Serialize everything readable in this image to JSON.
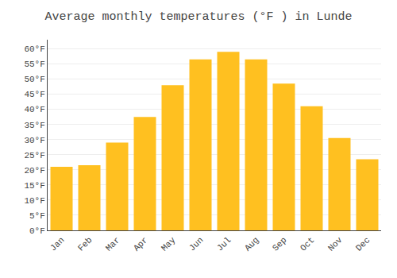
{
  "chart_data": {
    "type": "bar",
    "title": "Average monthly temperatures (°F ) in Lunde",
    "categories": [
      "Jan",
      "Feb",
      "Mar",
      "Apr",
      "May",
      "Jun",
      "Jul",
      "Aug",
      "Sep",
      "Oct",
      "Nov",
      "Dec"
    ],
    "values": [
      21.0,
      21.5,
      29.0,
      37.5,
      48.0,
      56.5,
      59.0,
      56.5,
      48.5,
      41.0,
      30.5,
      23.5
    ],
    "color": "#FFC020",
    "ylim": [
      0,
      63
    ],
    "yticks": [
      {
        "value": 0,
        "label": "0°F"
      },
      {
        "value": 5,
        "label": "5°F"
      },
      {
        "value": 10,
        "label": "10°F"
      },
      {
        "value": 15,
        "label": "15°F"
      },
      {
        "value": 20,
        "label": "20°F"
      },
      {
        "value": 25,
        "label": "25°F"
      },
      {
        "value": 30,
        "label": "30°F"
      },
      {
        "value": 35,
        "label": "35°F"
      },
      {
        "value": 40,
        "label": "40°F"
      },
      {
        "value": 45,
        "label": "45°F"
      },
      {
        "value": 50,
        "label": "50°F"
      },
      {
        "value": 55,
        "label": "55°F"
      },
      {
        "value": 60,
        "label": "60°F"
      }
    ],
    "grid": true
  }
}
